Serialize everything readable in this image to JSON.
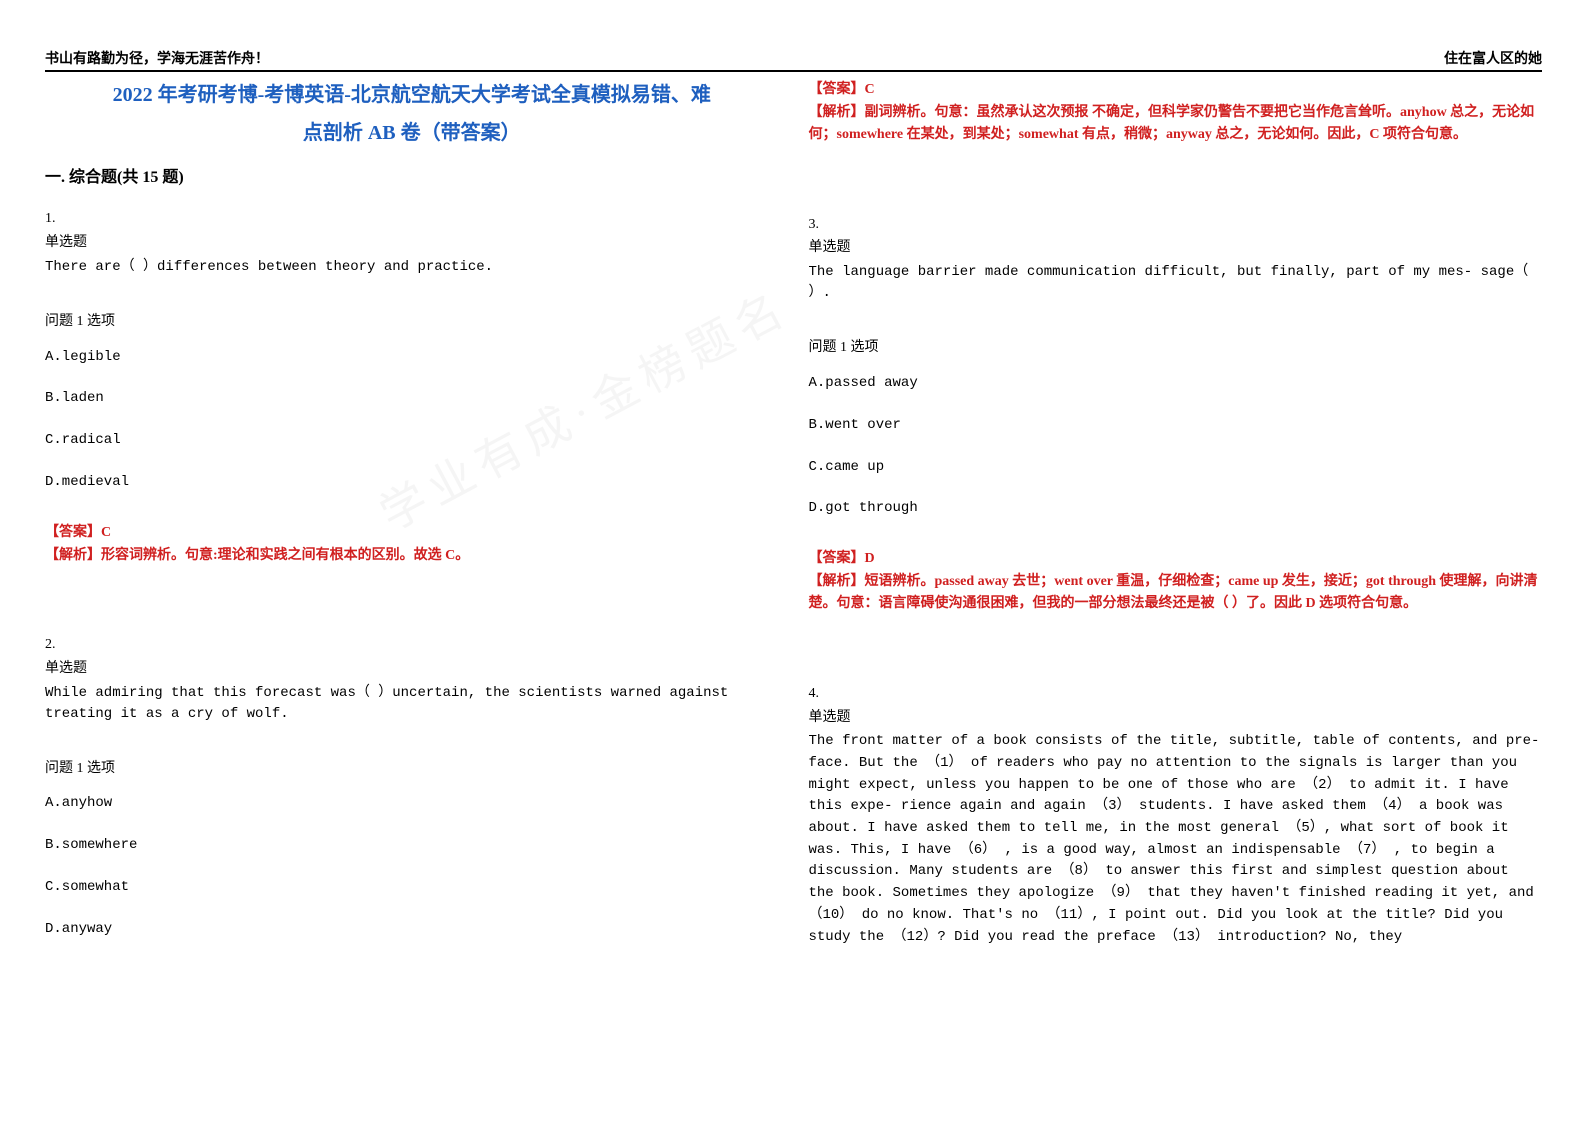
{
  "header": {
    "left": "书山有路勤为径，学海无涯苦作舟！",
    "right": "住在富人区的她"
  },
  "title_line1": "2022 年考研考博-考博英语-北京航空航天大学考试全真模拟易错、难",
  "title_line2": "点剖析 AB 卷（带答案）",
  "section_heading": "一. 综合题(共 15 题)",
  "q1": {
    "num": "1.",
    "type": "单选题",
    "stem": "There are（ ）differences between theory and practice.",
    "opt_label": "问题 1 选项",
    "optA": "A.legible",
    "optB": "B.laden",
    "optC": "C.radical",
    "optD": "D.medieval",
    "answer": "【答案】C",
    "explain": "【解析】形容词辨析。句意:理论和实践之间有根本的区别。故选 C。"
  },
  "q2": {
    "num": "2.",
    "type": "单选题",
    "stem": "While admiring that this forecast was（ ）uncertain, the scientists warned against treating it as a cry of wolf.",
    "opt_label": "问题 1 选项",
    "optA": "A.anyhow",
    "optB": "B.somewhere",
    "optC": "C.somewhat",
    "optD": "D.anyway",
    "answer": "【答案】C",
    "explain": "【解析】副词辨析。句意：虽然承认这次预报 不确定，但科学家仍警告不要把它当作危言耸听。anyhow 总之，无论如何；somewhere 在某处，到某处；somewhat 有点，稍微；anyway 总之，无论如何。因此，C 项符合句意。"
  },
  "q3": {
    "num": "3.",
    "type": "单选题",
    "stem": "The language barrier made communication difficult, but finally, part of my mes- sage（ ）.",
    "opt_label": "问题 1 选项",
    "optA": "A.passed away",
    "optB": "B.went over",
    "optC": "C.came up",
    "optD": "D.got through",
    "answer": "【答案】D",
    "explain": "【解析】短语辨析。passed away 去世；went over 重温，仔细检查；came up 发生，接近；got through 使理解，向讲清楚。句意：语言障碍使沟通很困难，但我的一部分想法最终还是被（ ）了。因此 D 选项符合句意。"
  },
  "q4": {
    "num": "4.",
    "type": "单选题",
    "passage": "The front matter of a book consists of the title, subtitle, table of contents, and pre- face. But the （1） of readers who pay no attention to the signals is larger than you might expect, unless you happen to be one of those who are （2） to admit it. I have this expe- rience again and again （3） students. I have asked them （4） a book was about. I have asked them to tell me, in the most general （5）, what sort of book it was. This, I have （6） , is a good way, almost an indispensable （7） , to begin a discussion. Many students are （8） to answer this first and simplest question about the book. Sometimes they apologize （9） that they haven't finished reading it yet, and （10） do no know. That's no （11）, I point out. Did you look at the title? Did you study the （12）? Did you read the preface （13） introduction? No, they"
  },
  "watermark_text": "学业有成·金榜题名"
}
